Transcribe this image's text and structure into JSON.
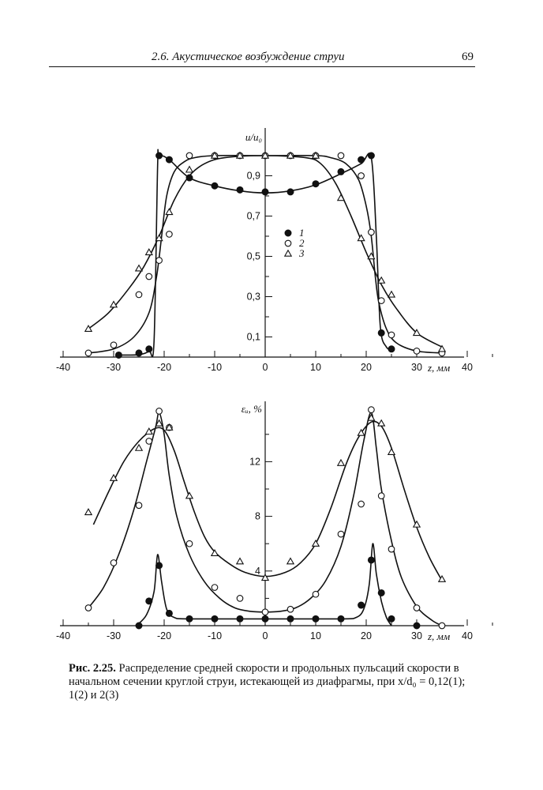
{
  "header": {
    "section_title": "2.6. Акустическое возбуждение струи",
    "page_number": "69"
  },
  "caption": {
    "label": "Рис. 2.25.",
    "text": "Распределение средней скорости и продольных пульсаций скорости в начальном сечении круглой струи, истекающей из диафрагмы, при x/d₀ = 0,12(1); 1(2) и 2(3)"
  },
  "chart_data": [
    {
      "type": "line",
      "ylabel": "u/u₀",
      "xlabel": "z, мм",
      "xlim": [
        -40,
        40
      ],
      "ylim": [
        0,
        1.0
      ],
      "x_ticks": [
        "-40",
        "-30",
        "-20",
        "-10",
        "0",
        "10",
        "20",
        "30",
        "40"
      ],
      "y_ticks": [
        {
          "v": 0.1,
          "label": "0,1"
        },
        {
          "v": 0.3,
          "label": "0,3"
        },
        {
          "v": 0.5,
          "label": "0,5"
        },
        {
          "v": 0.7,
          "label": "0,7"
        },
        {
          "v": 0.9,
          "label": "0,9"
        }
      ],
      "legend": {
        "placement": "center",
        "entries": [
          {
            "marker": "filled-circle",
            "label": "1"
          },
          {
            "marker": "open-circle",
            "label": "2"
          },
          {
            "marker": "triangle",
            "label": "3"
          }
        ]
      },
      "series": [
        {
          "name": "1",
          "marker": "filled-circle",
          "points": [
            [
              -29,
              0.01
            ],
            [
              -25,
              0.02
            ],
            [
              -23,
              0.04
            ],
            [
              -21,
              1.0
            ],
            [
              -19,
              0.98
            ],
            [
              -15,
              0.89
            ],
            [
              -10,
              0.85
            ],
            [
              -5,
              0.83
            ],
            [
              0,
              0.82
            ],
            [
              5,
              0.82
            ],
            [
              10,
              0.86
            ],
            [
              15,
              0.92
            ],
            [
              19,
              0.98
            ],
            [
              21,
              1.0
            ],
            [
              23,
              0.12
            ],
            [
              25,
              0.04
            ]
          ],
          "curve": [
            [
              -29,
              0.01
            ],
            [
              -25,
              0.012
            ],
            [
              -23,
              0.03
            ],
            [
              -22,
              0.08
            ],
            [
              -21.3,
              0.95
            ],
            [
              -21,
              1.0
            ],
            [
              -19,
              0.98
            ],
            [
              -15,
              0.89
            ],
            [
              -10,
              0.85
            ],
            [
              -5,
              0.825
            ],
            [
              0,
              0.815
            ],
            [
              5,
              0.825
            ],
            [
              10,
              0.855
            ],
            [
              15,
              0.91
            ],
            [
              19,
              0.96
            ],
            [
              21,
              0.99
            ],
            [
              22,
              0.6
            ],
            [
              22.8,
              0.15
            ],
            [
              24,
              0.05
            ],
            [
              25.5,
              0.03
            ]
          ]
        },
        {
          "name": "2",
          "marker": "open-circle",
          "points": [
            [
              -35,
              0.02
            ],
            [
              -30,
              0.06
            ],
            [
              -25,
              0.31
            ],
            [
              -23,
              0.4
            ],
            [
              -21,
              0.48
            ],
            [
              -19,
              0.61
            ],
            [
              -15,
              1.0
            ],
            [
              -10,
              1.0
            ],
            [
              -5,
              1.0
            ],
            [
              0,
              1.0
            ],
            [
              5,
              1.0
            ],
            [
              10,
              1.0
            ],
            [
              15,
              1.0
            ],
            [
              19,
              0.9
            ],
            [
              21,
              0.62
            ],
            [
              23,
              0.28
            ],
            [
              25,
              0.11
            ],
            [
              30,
              0.03
            ],
            [
              35,
              0.02
            ]
          ],
          "curve": [
            [
              -35,
              0.02
            ],
            [
              -30,
              0.04
            ],
            [
              -26,
              0.1
            ],
            [
              -23,
              0.22
            ],
            [
              -21.5,
              0.4
            ],
            [
              -20.5,
              0.6
            ],
            [
              -19.5,
              0.8
            ],
            [
              -18,
              0.92
            ],
            [
              -16,
              0.97
            ],
            [
              -14,
              0.99
            ],
            [
              -10,
              1.0
            ],
            [
              0,
              1.0
            ],
            [
              10,
              1.0
            ],
            [
              13,
              0.99
            ],
            [
              16,
              0.96
            ],
            [
              18.5,
              0.88
            ],
            [
              20,
              0.75
            ],
            [
              21,
              0.6
            ],
            [
              21.8,
              0.4
            ],
            [
              22.5,
              0.27
            ],
            [
              24,
              0.14
            ],
            [
              26,
              0.07
            ],
            [
              30,
              0.03
            ],
            [
              35,
              0.02
            ]
          ]
        },
        {
          "name": "3",
          "marker": "triangle",
          "points": [
            [
              -35,
              0.14
            ],
            [
              -30,
              0.26
            ],
            [
              -25,
              0.44
            ],
            [
              -23,
              0.52
            ],
            [
              -21,
              0.59
            ],
            [
              -19,
              0.72
            ],
            [
              -15,
              0.93
            ],
            [
              -10,
              1.0
            ],
            [
              -5,
              1.0
            ],
            [
              0,
              1.0
            ],
            [
              5,
              1.0
            ],
            [
              10,
              1.0
            ],
            [
              15,
              0.79
            ],
            [
              19,
              0.59
            ],
            [
              21,
              0.5
            ],
            [
              23,
              0.38
            ],
            [
              25,
              0.31
            ],
            [
              30,
              0.12
            ],
            [
              35,
              0.04
            ]
          ],
          "curve": [
            [
              -35,
              0.14
            ],
            [
              -31,
              0.22
            ],
            [
              -27,
              0.34
            ],
            [
              -24,
              0.45
            ],
            [
              -21,
              0.6
            ],
            [
              -18,
              0.78
            ],
            [
              -15,
              0.9
            ],
            [
              -12,
              0.96
            ],
            [
              -8,
              0.99
            ],
            [
              0,
              1.0
            ],
            [
              8,
              0.99
            ],
            [
              11,
              0.96
            ],
            [
              14,
              0.86
            ],
            [
              17,
              0.7
            ],
            [
              20,
              0.52
            ],
            [
              23,
              0.36
            ],
            [
              26,
              0.24
            ],
            [
              30,
              0.12
            ],
            [
              35,
              0.05
            ]
          ]
        }
      ]
    },
    {
      "type": "line",
      "ylabel": "εᵤ, %",
      "xlabel": "z, мм",
      "xlim": [
        -40,
        40
      ],
      "ylim": [
        0,
        16
      ],
      "x_ticks": [
        "-40",
        "-30",
        "-20",
        "-10",
        "0",
        "10",
        "20",
        "30",
        "40"
      ],
      "y_ticks": [
        {
          "v": 4,
          "label": "4"
        },
        {
          "v": 8,
          "label": "8"
        },
        {
          "v": 12,
          "label": "12"
        }
      ],
      "series": [
        {
          "name": "1",
          "marker": "filled-circle",
          "points": [
            [
              -25,
              0.0
            ],
            [
              -23,
              1.8
            ],
            [
              -21,
              4.4
            ],
            [
              -19,
              0.9
            ],
            [
              -15,
              0.5
            ],
            [
              -10,
              0.5
            ],
            [
              -5,
              0.5
            ],
            [
              0,
              0.5
            ],
            [
              5,
              0.5
            ],
            [
              10,
              0.5
            ],
            [
              15,
              0.5
            ],
            [
              19,
              1.5
            ],
            [
              21,
              4.8
            ],
            [
              23,
              2.4
            ],
            [
              25,
              0.5
            ],
            [
              30,
              0.0
            ]
          ],
          "curve": [
            [
              -25.5,
              0.0
            ],
            [
              -23.5,
              0.8
            ],
            [
              -22,
              2.5
            ],
            [
              -21.3,
              5.2
            ],
            [
              -20.5,
              3.2
            ],
            [
              -19.5,
              1.2
            ],
            [
              -18,
              0.6
            ],
            [
              -15,
              0.5
            ],
            [
              0,
              0.5
            ],
            [
              15,
              0.5
            ],
            [
              18,
              0.6
            ],
            [
              19.5,
              1.2
            ],
            [
              20.6,
              3.0
            ],
            [
              21.3,
              6.0
            ],
            [
              22,
              3.8
            ],
            [
              23,
              1.8
            ],
            [
              24,
              0.6
            ],
            [
              25,
              0.0
            ]
          ]
        },
        {
          "name": "2",
          "marker": "open-circle",
          "points": [
            [
              -35,
              1.3
            ],
            [
              -30,
              4.6
            ],
            [
              -25,
              8.8
            ],
            [
              -23,
              13.5
            ],
            [
              -21,
              15.7
            ],
            [
              -19,
              14.5
            ],
            [
              -15,
              6.0
            ],
            [
              -10,
              2.8
            ],
            [
              -5,
              2.0
            ],
            [
              0,
              1.0
            ],
            [
              5,
              1.2
            ],
            [
              10,
              2.3
            ],
            [
              15,
              6.7
            ],
            [
              19,
              8.9
            ],
            [
              21,
              15.8
            ],
            [
              23,
              9.5
            ],
            [
              25,
              5.6
            ],
            [
              30,
              1.3
            ],
            [
              35,
              0.0
            ]
          ],
          "curve": [
            [
              -35,
              1.3
            ],
            [
              -32,
              2.8
            ],
            [
              -29,
              5.2
            ],
            [
              -26,
              8.5
            ],
            [
              -23.5,
              12.0
            ],
            [
              -21.7,
              14.5
            ],
            [
              -21,
              15.6
            ],
            [
              -20,
              14.0
            ],
            [
              -19,
              11.0
            ],
            [
              -17.5,
              8.0
            ],
            [
              -15,
              5.2
            ],
            [
              -12,
              3.2
            ],
            [
              -9,
              2.0
            ],
            [
              -6,
              1.3
            ],
            [
              -3,
              1.05
            ],
            [
              0,
              1.0
            ],
            [
              3,
              1.05
            ],
            [
              6,
              1.3
            ],
            [
              9,
              2.0
            ],
            [
              12,
              3.3
            ],
            [
              15,
              5.8
            ],
            [
              17.5,
              9.5
            ],
            [
              19.5,
              13.5
            ],
            [
              21,
              15.6
            ],
            [
              22,
              13.0
            ],
            [
              23,
              10.0
            ],
            [
              25,
              6.2
            ],
            [
              27,
              3.5
            ],
            [
              30,
              1.4
            ],
            [
              33,
              0.4
            ],
            [
              35,
              0.0
            ]
          ]
        },
        {
          "name": "3",
          "marker": "triangle",
          "points": [
            [
              -35,
              8.3
            ],
            [
              -30,
              10.8
            ],
            [
              -25,
              13.0
            ],
            [
              -23,
              14.2
            ],
            [
              -21,
              14.8
            ],
            [
              -19,
              14.5
            ],
            [
              -15,
              9.5
            ],
            [
              -10,
              5.3
            ],
            [
              -5,
              4.7
            ],
            [
              0,
              3.5
            ],
            [
              5,
              4.7
            ],
            [
              10,
              6.0
            ],
            [
              15,
              11.9
            ],
            [
              19,
              14.1
            ],
            [
              21,
              15.2
            ],
            [
              23,
              14.8
            ],
            [
              25,
              12.7
            ],
            [
              30,
              7.4
            ],
            [
              35,
              3.4
            ]
          ],
          "curve": [
            [
              -34,
              7.4
            ],
            [
              -31,
              9.8
            ],
            [
              -28,
              12.0
            ],
            [
              -25,
              13.5
            ],
            [
              -22,
              14.4
            ],
            [
              -20,
              14.3
            ],
            [
              -18,
              12.8
            ],
            [
              -16,
              10.5
            ],
            [
              -14,
              8.3
            ],
            [
              -12,
              6.5
            ],
            [
              -10,
              5.4
            ],
            [
              -7,
              4.5
            ],
            [
              -4,
              3.9
            ],
            [
              0,
              3.6
            ],
            [
              4,
              3.9
            ],
            [
              7,
              4.6
            ],
            [
              10,
              6.0
            ],
            [
              13,
              8.6
            ],
            [
              16,
              11.8
            ],
            [
              18.5,
              13.8
            ],
            [
              21,
              14.9
            ],
            [
              23,
              14.6
            ],
            [
              25,
              13.0
            ],
            [
              27.5,
              10.0
            ],
            [
              30,
              7.2
            ],
            [
              32.5,
              5.0
            ],
            [
              35,
              3.3
            ]
          ]
        }
      ]
    }
  ]
}
